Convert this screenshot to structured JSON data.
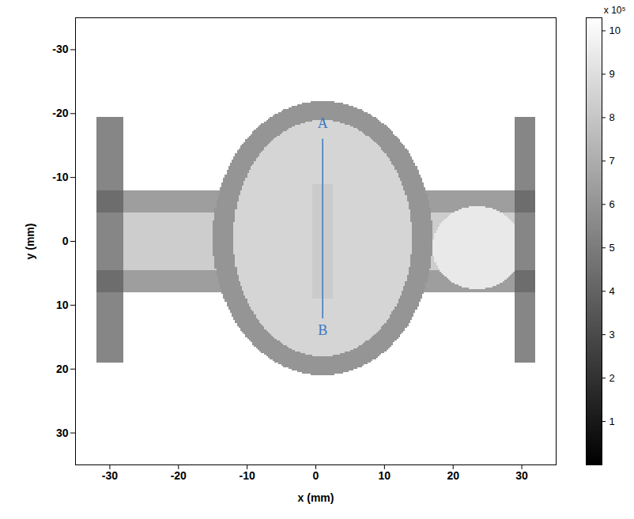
{
  "chart_data": {
    "type": "heatmap",
    "xlabel": "x (mm)",
    "ylabel": "y (mm)",
    "xlim": [
      -35,
      35
    ],
    "ylim": [
      35,
      -35
    ],
    "xticks": [
      -30,
      -20,
      -10,
      0,
      10,
      20,
      30
    ],
    "yticks": [
      -30,
      -20,
      -10,
      0,
      10,
      20,
      30
    ],
    "background_value": 10.3,
    "regions": [
      {
        "shape": "rect",
        "x": [
          -28,
          -13
        ],
        "y": [
          -8,
          8
        ],
        "value": 8.3
      },
      {
        "shape": "rect",
        "x": [
          -28,
          -13
        ],
        "y": [
          -8,
          -4.5
        ],
        "value": 6.4
      },
      {
        "shape": "rect",
        "x": [
          -28,
          -13
        ],
        "y": [
          4.5,
          8
        ],
        "value": 6.4
      },
      {
        "shape": "rect",
        "x": [
          15,
          29
        ],
        "y": [
          -8,
          8
        ],
        "value": 8.3
      },
      {
        "shape": "rect",
        "x": [
          15,
          29
        ],
        "y": [
          -8,
          -4.5
        ],
        "value": 6.4
      },
      {
        "shape": "rect",
        "x": [
          15,
          29
        ],
        "y": [
          4.5,
          8
        ],
        "value": 6.4
      },
      {
        "shape": "ellipse",
        "cx": 1,
        "cy": -0.5,
        "rx": 16,
        "ry": 21.5,
        "value": 6.0
      },
      {
        "shape": "ellipse",
        "cx": 1,
        "cy": -0.5,
        "rx": 13,
        "ry": 18.5,
        "value": 8.6
      },
      {
        "shape": "rect",
        "x": [
          -0.5,
          2.5
        ],
        "y": [
          -9,
          9
        ],
        "value": 8.2
      },
      {
        "shape": "ellipse",
        "cx": 23.5,
        "cy": 1,
        "rx": 6.5,
        "ry": 6.5,
        "value": 9.4
      },
      {
        "shape": "rect",
        "x": [
          -32,
          -28
        ],
        "y": [
          -19.5,
          19
        ],
        "value": 5.4
      },
      {
        "shape": "rect",
        "x": [
          -32,
          -28
        ],
        "y": [
          -8,
          -4.5
        ],
        "value": 4.4
      },
      {
        "shape": "rect",
        "x": [
          -32,
          -28
        ],
        "y": [
          4.5,
          8
        ],
        "value": 4.4
      },
      {
        "shape": "rect",
        "x": [
          29,
          32
        ],
        "y": [
          -19.5,
          19
        ],
        "value": 5.4
      },
      {
        "shape": "rect",
        "x": [
          29,
          32
        ],
        "y": [
          -8,
          -4.5
        ],
        "value": 4.4
      },
      {
        "shape": "rect",
        "x": [
          29,
          32
        ],
        "y": [
          4.5,
          8
        ],
        "value": 4.4
      }
    ],
    "colorbar": {
      "range": [
        0,
        10.3
      ],
      "ticks": [
        1,
        2,
        3,
        4,
        5,
        6,
        7,
        8,
        9,
        10
      ],
      "label": "x 10⁵",
      "colors": [
        "#000000",
        "#ffffff"
      ]
    },
    "annotations": {
      "line": {
        "x": [
          1,
          1
        ],
        "y": [
          -16,
          12
        ],
        "color": "#3a78c0"
      },
      "labels": [
        {
          "text": "A",
          "x": 1,
          "y": -18.5
        },
        {
          "text": "B",
          "x": 1,
          "y": 14
        }
      ]
    }
  }
}
